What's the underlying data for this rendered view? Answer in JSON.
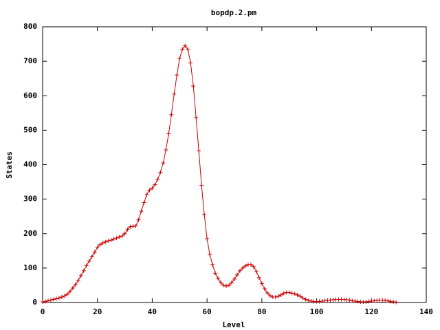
{
  "chart_data": {
    "type": "line",
    "title": "bopdp.2.pm",
    "x_label": "Level",
    "y_label": "States",
    "xlim": [
      0,
      140
    ],
    "xticks": [
      0,
      20,
      40,
      60,
      80,
      100,
      120,
      140
    ],
    "ylim": [
      0,
      800
    ],
    "yticks": [
      0,
      100,
      200,
      300,
      400,
      500,
      600,
      700,
      800
    ],
    "x": [
      0,
      1,
      2,
      3,
      4,
      5,
      6,
      7,
      8,
      9,
      10,
      11,
      12,
      13,
      14,
      15,
      16,
      17,
      18,
      19,
      20,
      21,
      22,
      23,
      24,
      25,
      26,
      27,
      28,
      29,
      30,
      31,
      32,
      33,
      34,
      35,
      36,
      37,
      38,
      39,
      40,
      41,
      42,
      43,
      44,
      45,
      46,
      47,
      48,
      49,
      50,
      51,
      52,
      53,
      54,
      55,
      56,
      57,
      58,
      59,
      60,
      61,
      62,
      63,
      64,
      65,
      66,
      67,
      68,
      69,
      70,
      71,
      72,
      73,
      74,
      75,
      76,
      77,
      78,
      79,
      80,
      81,
      82,
      83,
      84,
      85,
      86,
      87,
      88,
      89,
      90,
      91,
      92,
      93,
      94,
      95,
      96,
      97,
      98,
      99,
      100,
      101,
      102,
      103,
      104,
      105,
      106,
      107,
      108,
      109,
      110,
      111,
      112,
      113,
      114,
      115,
      116,
      117,
      118,
      119,
      120,
      121,
      122,
      123,
      124,
      125,
      126,
      127,
      128,
      129
    ],
    "series": [
      {
        "color": "#cc0000",
        "values": [
          2,
          3,
          5,
          7,
          9,
          11,
          13,
          16,
          19,
          24,
          32,
          42,
          52,
          64,
          78,
          92,
          107,
          120,
          133,
          146,
          160,
          168,
          173,
          176,
          179,
          181,
          184,
          187,
          190,
          193,
          200,
          212,
          220,
          221,
          222,
          240,
          265,
          290,
          313,
          326,
          332,
          342,
          357,
          378,
          405,
          443,
          490,
          545,
          605,
          660,
          708,
          735,
          745,
          735,
          695,
          628,
          537,
          440,
          340,
          255,
          185,
          140,
          110,
          85,
          70,
          58,
          50,
          48,
          50,
          58,
          68,
          80,
          92,
          100,
          106,
          110,
          110,
          104,
          90,
          72,
          55,
          40,
          28,
          20,
          16,
          16,
          18,
          22,
          27,
          29,
          29,
          27,
          25,
          22,
          18,
          13,
          9,
          6,
          4,
          3,
          3,
          3,
          4,
          5,
          6,
          7,
          8,
          9,
          9,
          9,
          9,
          8,
          7,
          5,
          4,
          3,
          2,
          2,
          2,
          3,
          4,
          5,
          6,
          7,
          7,
          6,
          5,
          3,
          2,
          1
        ]
      }
    ]
  }
}
